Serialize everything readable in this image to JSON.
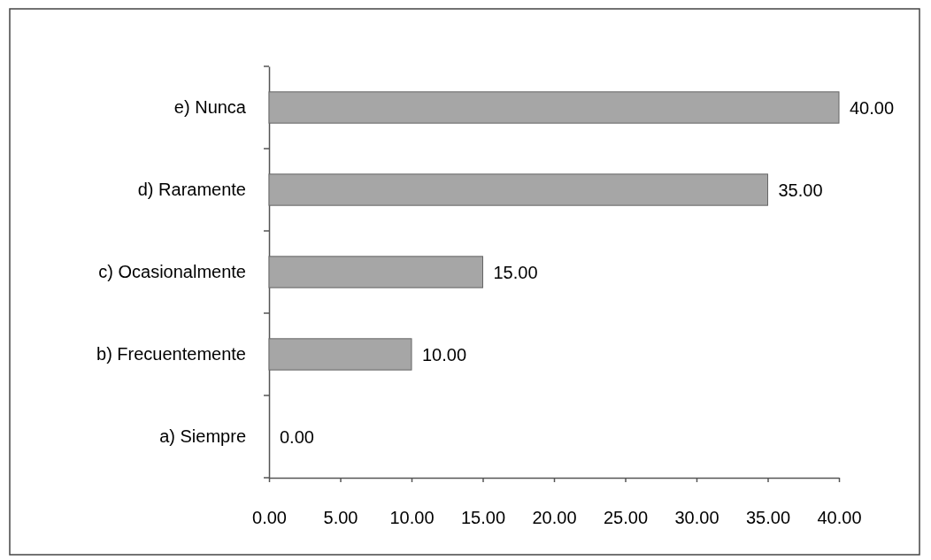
{
  "chart_data": {
    "type": "bar",
    "orientation": "horizontal",
    "categories": [
      "e) Nunca",
      "d) Raramente",
      "c) Ocasionalmente",
      "b) Frecuentemente",
      "a) Siempre"
    ],
    "values": [
      40,
      35,
      15,
      10,
      0
    ],
    "color": "#a6a6a6",
    "value_labels": [
      "40.00",
      "35.00",
      "15.00",
      "10.00",
      "0.00"
    ],
    "xlim": [
      0,
      40
    ],
    "xticks": [
      {
        "value": 0,
        "label": "0.00"
      },
      {
        "value": 5,
        "label": "5.00"
      },
      {
        "value": 10,
        "label": "10.00"
      },
      {
        "value": 15,
        "label": "15.00"
      },
      {
        "value": 20,
        "label": "20.00"
      },
      {
        "value": 25,
        "label": "25.00"
      },
      {
        "value": 30,
        "label": "30.00"
      },
      {
        "value": 35,
        "label": "35.00"
      },
      {
        "value": 40,
        "label": "40.00"
      }
    ],
    "grid": false
  }
}
